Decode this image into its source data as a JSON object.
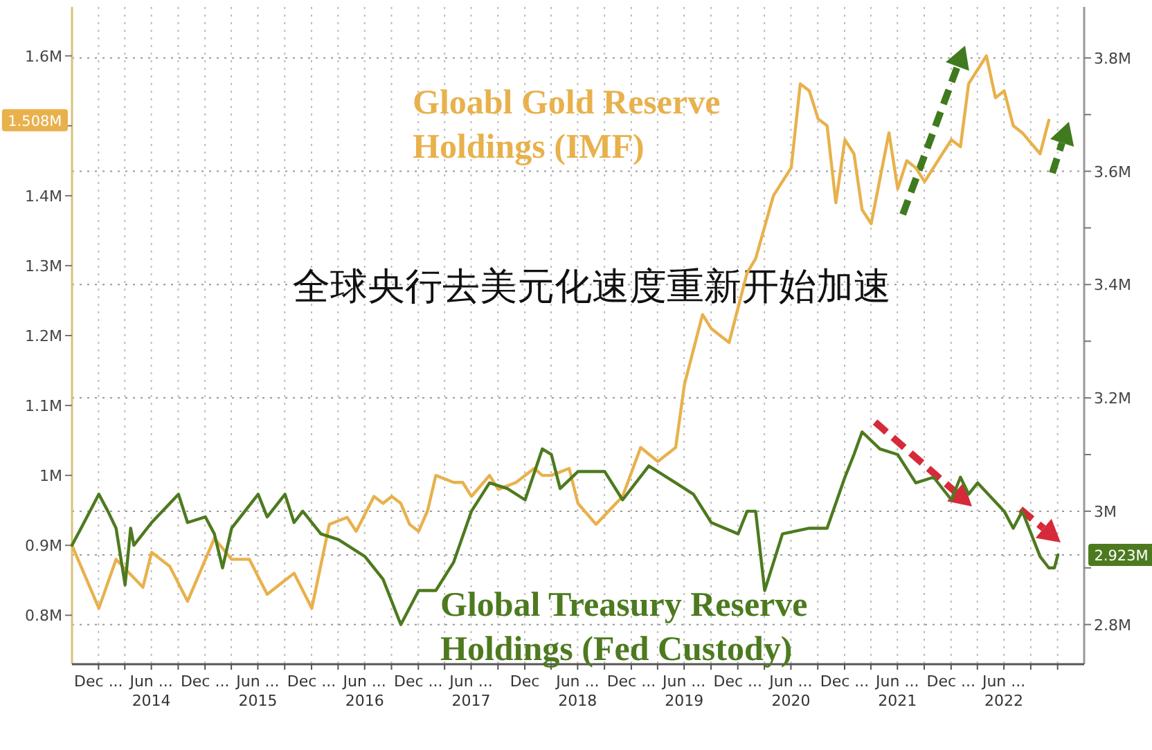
{
  "chart_data": {
    "type": "line",
    "annotations": [
      "全球央行去美元化速度重新开始加速"
    ],
    "xlim": [
      "2013-10-01",
      "2023-04-01"
    ],
    "xticks": [
      {
        "value": "2013-12-31",
        "label": "Dec ..."
      },
      {
        "value": "2014-03-31",
        "label": null
      },
      {
        "value": "2014-06-30",
        "label": "Jun ...\n2014"
      },
      {
        "value": "2014-09-30",
        "label": null
      },
      {
        "value": "2014-12-31",
        "label": "Dec ..."
      },
      {
        "value": "2015-03-31",
        "label": null
      },
      {
        "value": "2015-06-30",
        "label": "Jun ...\n2015"
      },
      {
        "value": "2015-09-30",
        "label": null
      },
      {
        "value": "2015-12-31",
        "label": "Dec ..."
      },
      {
        "value": "2016-03-31",
        "label": null
      },
      {
        "value": "2016-06-30",
        "label": "Jun ...\n2016"
      },
      {
        "value": "2016-09-30",
        "label": null
      },
      {
        "value": "2016-12-31",
        "label": "Dec ..."
      },
      {
        "value": "2017-03-31",
        "label": null
      },
      {
        "value": "2017-06-30",
        "label": "Jun ...\n2017"
      },
      {
        "value": "2017-09-30",
        "label": null
      },
      {
        "value": "2017-12-31",
        "label": "Dec"
      },
      {
        "value": "2018-03-31",
        "label": null
      },
      {
        "value": "2018-06-30",
        "label": "Jun ...\n2018"
      },
      {
        "value": "2018-09-30",
        "label": null
      },
      {
        "value": "2018-12-31",
        "label": "Dec ..."
      },
      {
        "value": "2019-03-31",
        "label": null
      },
      {
        "value": "2019-06-30",
        "label": "Jun ...\n2019"
      },
      {
        "value": "2019-09-30",
        "label": null
      },
      {
        "value": "2019-12-31",
        "label": "Dec ..."
      },
      {
        "value": "2020-03-31",
        "label": null
      },
      {
        "value": "2020-06-30",
        "label": "Jun ...\n2020"
      },
      {
        "value": "2020-09-30",
        "label": null
      },
      {
        "value": "2020-12-31",
        "label": "Dec ..."
      },
      {
        "value": "2021-03-31",
        "label": null
      },
      {
        "value": "2021-06-30",
        "label": "Jun ...\n2021"
      },
      {
        "value": "2021-09-30",
        "label": null
      },
      {
        "value": "2021-12-31",
        "label": "Dec ..."
      },
      {
        "value": "2022-03-31",
        "label": null
      },
      {
        "value": "2022-06-30",
        "label": "Jun ...\n2022"
      },
      {
        "value": "2022-09-30",
        "label": null
      },
      {
        "value": "2022-12-31",
        "label": null
      }
    ],
    "ylim": [
      0.73,
      1.67
    ],
    "yticks": [
      {
        "value": 0.8,
        "label": "0.8M"
      },
      {
        "value": 0.9,
        "label": "0.9M"
      },
      {
        "value": 1.0,
        "label": "1M"
      },
      {
        "value": 1.1,
        "label": "1.1M"
      },
      {
        "value": 1.2,
        "label": "1.2M"
      },
      {
        "value": 1.3,
        "label": "1.3M"
      },
      {
        "value": 1.4,
        "label": "1.4M"
      },
      {
        "value": 1.5,
        "label": null
      },
      {
        "value": 1.508,
        "label": "1.508M"
      },
      {
        "value": 1.6,
        "label": "1.6M"
      }
    ],
    "y2lim": [
      2.73,
      3.89
    ],
    "y2ticks": [
      {
        "value": 2.8,
        "label": "2.8M"
      },
      {
        "value": 2.9,
        "label": null
      },
      {
        "value": 2.923,
        "label": "2.923M"
      },
      {
        "value": 3.0,
        "label": "3M"
      },
      {
        "value": 3.1,
        "label": null
      },
      {
        "value": 3.2,
        "label": "3.2M"
      },
      {
        "value": 3.3,
        "label": null
      },
      {
        "value": 3.4,
        "label": "3.4M"
      },
      {
        "value": 3.5,
        "label": null
      },
      {
        "value": 3.6,
        "label": "3.6M"
      },
      {
        "value": 3.7,
        "label": null
      },
      {
        "value": 3.8,
        "label": "3.8M"
      }
    ],
    "grid": true,
    "series": [
      {
        "name": "Gloabl Gold Reserve Holdings (IMF)",
        "color": "#e8b14c",
        "axis": "y",
        "x": [
          "2013-10",
          "2014-01",
          "2014-03",
          "2014-06",
          "2014-07",
          "2014-09",
          "2014-11",
          "2015-02",
          "2015-04",
          "2015-06",
          "2015-08",
          "2015-10",
          "2015-11",
          "2016-01",
          "2016-03",
          "2016-05",
          "2016-06",
          "2016-08",
          "2016-09",
          "2016-10",
          "2016-11",
          "2016-12",
          "2017-01",
          "2017-02",
          "2017-03",
          "2017-05",
          "2017-06",
          "2017-07",
          "2017-09",
          "2017-10",
          "2017-12",
          "2018-02",
          "2018-03",
          "2018-04",
          "2018-06",
          "2018-07",
          "2018-09",
          "2018-12",
          "2019-02",
          "2019-04",
          "2019-06",
          "2019-07",
          "2019-09",
          "2019-10",
          "2019-12",
          "2020-02",
          "2020-03",
          "2020-05",
          "2020-07",
          "2020-08",
          "2020-09",
          "2020-10",
          "2020-11",
          "2020-12",
          "2021-01",
          "2021-02",
          "2021-03",
          "2021-04",
          "2021-06",
          "2021-07",
          "2021-08",
          "2021-09",
          "2021-10",
          "2021-12",
          "2022-01",
          "2022-02",
          "2022-03",
          "2022-05",
          "2022-06",
          "2022-07",
          "2022-08",
          "2022-09",
          "2022-11",
          "2022-12"
        ],
        "values": [
          0.9,
          0.81,
          0.88,
          0.84,
          0.89,
          0.87,
          0.82,
          0.91,
          0.88,
          0.88,
          0.83,
          0.85,
          0.86,
          0.81,
          0.93,
          0.94,
          0.92,
          0.97,
          0.96,
          0.97,
          0.96,
          0.93,
          0.92,
          0.95,
          1.0,
          0.99,
          0.99,
          0.97,
          1.0,
          0.98,
          0.99,
          1.01,
          1.0,
          1.0,
          1.01,
          0.96,
          0.93,
          0.97,
          1.04,
          1.02,
          1.04,
          1.13,
          1.23,
          1.21,
          1.19,
          1.29,
          1.31,
          1.4,
          1.44,
          1.56,
          1.55,
          1.51,
          1.5,
          1.39,
          1.48,
          1.46,
          1.38,
          1.36,
          1.49,
          1.41,
          1.45,
          1.44,
          1.42,
          1.46,
          1.48,
          1.47,
          1.56,
          1.6,
          1.54,
          1.55,
          1.5,
          1.49,
          1.46,
          1.508
        ]
      },
      {
        "name": "Global Treasury Reserve Holdings (Fed Custody)",
        "color": "#4d7a1f",
        "axis": "y2",
        "x": [
          "2013-10",
          "2013-11",
          "2014-01",
          "2014-02",
          "2014-03",
          "2014-04",
          "2014-04-20",
          "2014-05",
          "2014-07",
          "2014-10",
          "2014-11",
          "2015-01",
          "2015-02",
          "2015-03",
          "2015-04",
          "2015-07",
          "2015-08",
          "2015-10",
          "2015-11",
          "2015-12",
          "2016-02",
          "2016-04",
          "2016-07",
          "2016-09",
          "2016-11",
          "2017-01",
          "2017-03",
          "2017-05",
          "2017-07",
          "2017-09",
          "2017-11",
          "2018-01",
          "2018-03",
          "2018-04",
          "2018-05",
          "2018-07",
          "2018-10",
          "2018-12",
          "2019-03",
          "2019-06",
          "2019-08",
          "2019-10",
          "2020-01",
          "2020-02",
          "2020-03",
          "2020-04",
          "2020-06",
          "2020-09",
          "2020-11",
          "2021-01",
          "2021-02",
          "2021-03",
          "2021-05",
          "2021-07",
          "2021-09",
          "2021-11",
          "2022-01",
          "2022-02",
          "2022-03",
          "2022-04",
          "2022-07",
          "2022-08",
          "2022-09",
          "2022-11",
          "2022-12",
          "2022-12-20",
          "2023-01"
        ],
        "values": [
          2.94,
          2.97,
          3.03,
          3.0,
          2.97,
          2.87,
          2.97,
          2.94,
          2.98,
          3.03,
          2.98,
          2.99,
          2.96,
          2.9,
          2.97,
          3.03,
          2.99,
          3.03,
          2.98,
          3.0,
          2.96,
          2.95,
          2.92,
          2.88,
          2.8,
          2.86,
          2.86,
          2.91,
          3.0,
          3.05,
          3.04,
          3.02,
          3.11,
          3.1,
          3.04,
          3.07,
          3.07,
          3.02,
          3.08,
          3.05,
          3.03,
          2.98,
          2.96,
          3.0,
          3.0,
          2.86,
          2.96,
          2.97,
          2.97,
          3.06,
          3.1,
          3.14,
          3.11,
          3.1,
          3.05,
          3.06,
          3.02,
          3.06,
          3.03,
          3.05,
          3.0,
          2.97,
          3.0,
          2.92,
          2.9,
          2.9,
          2.923
        ]
      }
    ]
  }
}
